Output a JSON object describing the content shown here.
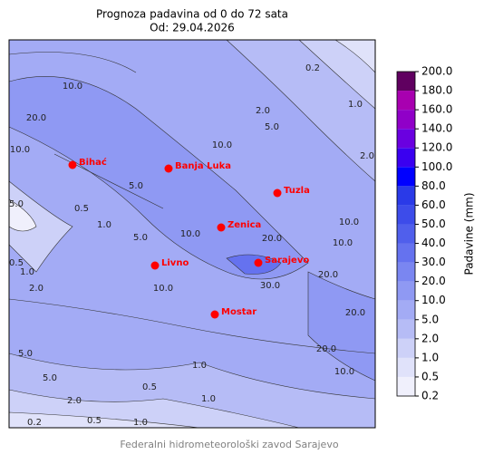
{
  "header": {
    "title": "Prognoza padavina od 0 do 72 sata",
    "subtitle": "Od: 29.04.2026"
  },
  "cities": [
    "Bihać",
    "Banja Luka",
    "Tuzla",
    "Zenica",
    "Livno",
    "Sarajevo",
    "Mostar"
  ],
  "contour_labels": [
    "10.0",
    "20.0",
    "10.0",
    "2.0",
    "5.0",
    "0.2",
    "1.0",
    "2.0",
    "10.0",
    "10.0",
    "20.0",
    "20.0",
    "30.0",
    "20.0",
    "20.0",
    "10.0",
    "5.0",
    "5.0",
    "2.0",
    "0.5",
    "1.0",
    "0.2",
    "0.5",
    "1.0",
    "2.0",
    "1.0",
    "5.0",
    "10.0",
    "10.0",
    "0.5",
    "1.0",
    "5.0",
    "1.0",
    "0.5",
    "10.0",
    "5.0"
  ],
  "colorbar": {
    "label": "Padavine (mm)",
    "ticks": [
      0.2,
      0.5,
      {
        "value": 1,
        "label": "1.0"
      },
      {
        "value": 2,
        "label": "2.0"
      },
      {
        "value": 5,
        "label": "5.0"
      },
      {
        "value": 10,
        "label": "10.0"
      },
      {
        "value": 20,
        "label": "20.0"
      },
      {
        "value": 30,
        "label": "30.0"
      },
      {
        "value": 40,
        "label": "40.0"
      },
      {
        "value": 50,
        "label": "50.0"
      },
      {
        "value": 60,
        "label": "60.0"
      },
      {
        "value": 80,
        "label": "80.0"
      },
      {
        "value": 100,
        "label": "100.0"
      },
      {
        "value": 120,
        "label": "120.0"
      },
      {
        "value": 140,
        "label": "140.0"
      },
      {
        "value": 160,
        "label": "160.0"
      },
      {
        "value": 180,
        "label": "180.0"
      },
      {
        "value": 200,
        "label": "200.0"
      }
    ],
    "colors": [
      "#f0f0fc",
      "#e0e2fa",
      "#cdd1f8",
      "#b6bcf6",
      "#a3abf5",
      "#8f99f3",
      "#7a86f1",
      "#6572ef",
      "#505fec",
      "#3d4cea",
      "#2a3ae8",
      "#0000ff",
      "#3a00f0",
      "#6a00e0",
      "#9000c8",
      "#a800b0",
      "#600060"
    ]
  },
  "footer": "Federalni hidrometeorološki zavod Sarajevo"
}
